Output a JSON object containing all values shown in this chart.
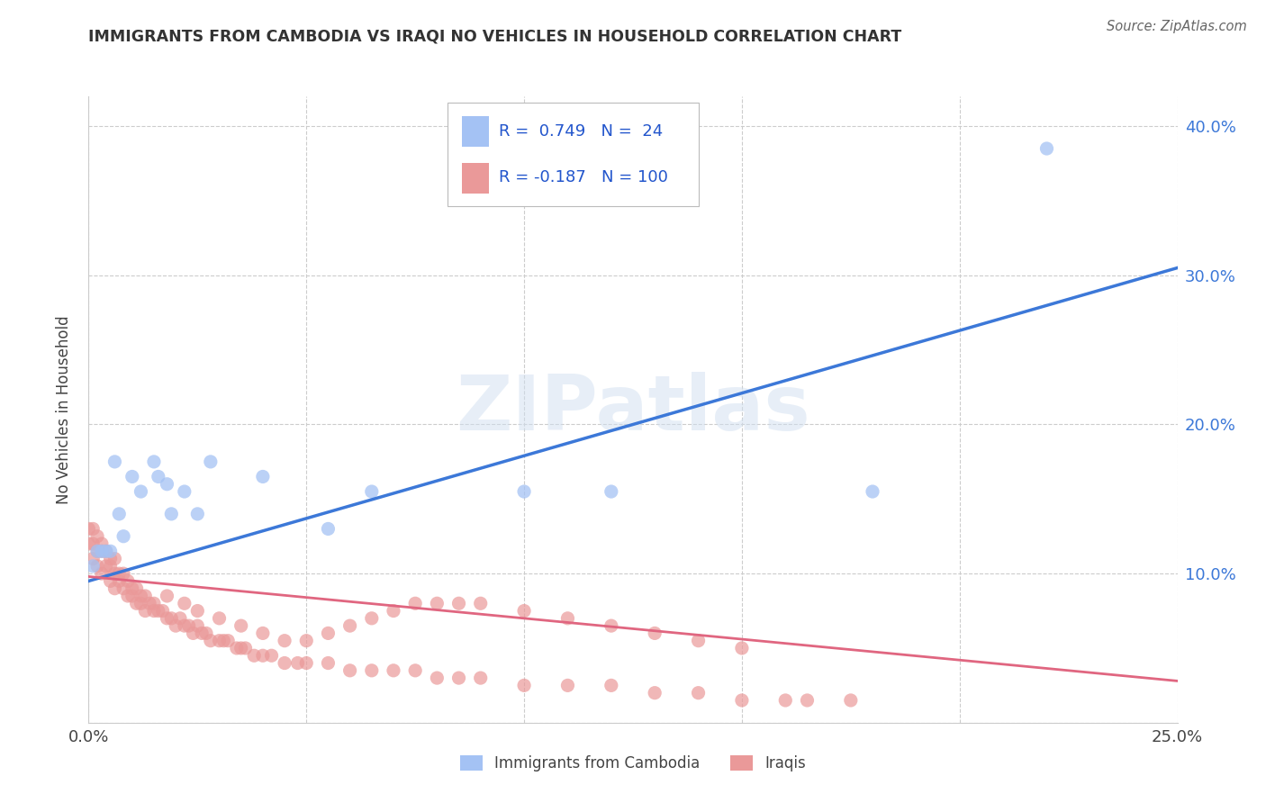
{
  "title": "IMMIGRANTS FROM CAMBODIA VS IRAQI NO VEHICLES IN HOUSEHOLD CORRELATION CHART",
  "source": "Source: ZipAtlas.com",
  "ylabel": "No Vehicles in Household",
  "xlim": [
    0.0,
    0.25
  ],
  "ylim": [
    0.0,
    0.42
  ],
  "color_cambodia": "#a4c2f4",
  "color_iraq": "#ea9999",
  "line_color_cambodia": "#3c78d8",
  "line_color_iraq": "#e06680",
  "watermark": "ZIPatlas",
  "background_color": "#ffffff",
  "cambodia_scatter_x": [
    0.001,
    0.002,
    0.003,
    0.004,
    0.005,
    0.006,
    0.007,
    0.008,
    0.01,
    0.012,
    0.015,
    0.016,
    0.018,
    0.019,
    0.022,
    0.025,
    0.028,
    0.04,
    0.055,
    0.065,
    0.1,
    0.12,
    0.18,
    0.22
  ],
  "cambodia_scatter_y": [
    0.105,
    0.115,
    0.115,
    0.115,
    0.115,
    0.175,
    0.14,
    0.125,
    0.165,
    0.155,
    0.175,
    0.165,
    0.16,
    0.14,
    0.155,
    0.14,
    0.175,
    0.165,
    0.13,
    0.155,
    0.155,
    0.155,
    0.155,
    0.385
  ],
  "iraq_scatter_x": [
    0.0,
    0.0,
    0.001,
    0.001,
    0.001,
    0.002,
    0.002,
    0.002,
    0.003,
    0.003,
    0.003,
    0.004,
    0.004,
    0.005,
    0.005,
    0.005,
    0.006,
    0.006,
    0.006,
    0.007,
    0.007,
    0.008,
    0.008,
    0.009,
    0.009,
    0.01,
    0.01,
    0.011,
    0.011,
    0.012,
    0.012,
    0.013,
    0.013,
    0.014,
    0.015,
    0.015,
    0.016,
    0.017,
    0.018,
    0.019,
    0.02,
    0.021,
    0.022,
    0.023,
    0.024,
    0.025,
    0.026,
    0.027,
    0.028,
    0.03,
    0.031,
    0.032,
    0.034,
    0.035,
    0.036,
    0.038,
    0.04,
    0.042,
    0.045,
    0.048,
    0.05,
    0.055,
    0.06,
    0.065,
    0.07,
    0.075,
    0.08,
    0.085,
    0.09,
    0.1,
    0.11,
    0.12,
    0.13,
    0.14,
    0.15,
    0.16,
    0.165,
    0.175,
    0.15,
    0.14,
    0.13,
    0.12,
    0.11,
    0.1,
    0.09,
    0.085,
    0.08,
    0.075,
    0.07,
    0.065,
    0.06,
    0.055,
    0.05,
    0.045,
    0.04,
    0.035,
    0.03,
    0.025,
    0.022,
    0.018
  ],
  "iraq_scatter_y": [
    0.13,
    0.12,
    0.13,
    0.12,
    0.11,
    0.125,
    0.115,
    0.105,
    0.12,
    0.115,
    0.1,
    0.115,
    0.105,
    0.11,
    0.105,
    0.095,
    0.11,
    0.1,
    0.09,
    0.1,
    0.095,
    0.1,
    0.09,
    0.095,
    0.085,
    0.09,
    0.085,
    0.09,
    0.08,
    0.085,
    0.08,
    0.085,
    0.075,
    0.08,
    0.08,
    0.075,
    0.075,
    0.075,
    0.07,
    0.07,
    0.065,
    0.07,
    0.065,
    0.065,
    0.06,
    0.065,
    0.06,
    0.06,
    0.055,
    0.055,
    0.055,
    0.055,
    0.05,
    0.05,
    0.05,
    0.045,
    0.045,
    0.045,
    0.04,
    0.04,
    0.04,
    0.04,
    0.035,
    0.035,
    0.035,
    0.035,
    0.03,
    0.03,
    0.03,
    0.025,
    0.025,
    0.025,
    0.02,
    0.02,
    0.015,
    0.015,
    0.015,
    0.015,
    0.05,
    0.055,
    0.06,
    0.065,
    0.07,
    0.075,
    0.08,
    0.08,
    0.08,
    0.08,
    0.075,
    0.07,
    0.065,
    0.06,
    0.055,
    0.055,
    0.06,
    0.065,
    0.07,
    0.075,
    0.08,
    0.085
  ],
  "cam_line_x": [
    0.0,
    0.25
  ],
  "cam_line_y": [
    0.095,
    0.305
  ],
  "iraq_line_x": [
    0.0,
    0.25
  ],
  "iraq_line_y": [
    0.098,
    0.028
  ]
}
